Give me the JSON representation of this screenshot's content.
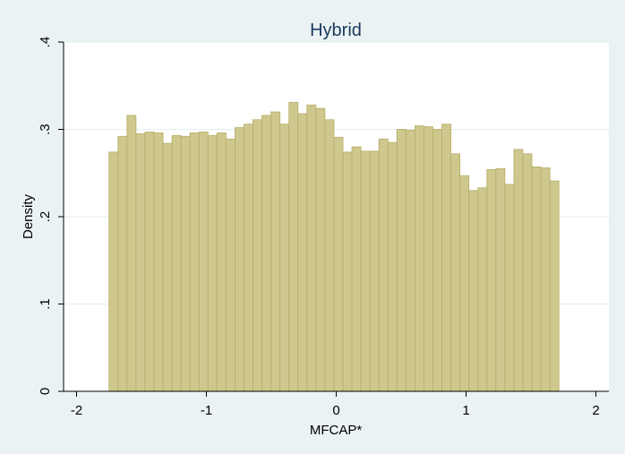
{
  "chart_data": {
    "type": "bar",
    "title": "Hybrid",
    "xlabel": "MFCAP*",
    "ylabel": "Density",
    "xlim": [
      -2.1,
      2.1
    ],
    "ylim": [
      0,
      0.4
    ],
    "x_ticks": [
      -2,
      -1,
      0,
      1,
      2
    ],
    "x_tick_labels": [
      "-2",
      "-1",
      "0",
      "1",
      "2"
    ],
    "y_ticks": [
      0,
      0.1,
      0.2,
      0.3,
      0.4
    ],
    "y_tick_labels": [
      "0",
      ".1",
      ".2",
      ".3",
      ".4"
    ],
    "grid": true,
    "bin_start": -1.75,
    "bin_width": 0.0693,
    "values": [
      0.274,
      0.292,
      0.316,
      0.295,
      0.297,
      0.296,
      0.284,
      0.293,
      0.292,
      0.296,
      0.297,
      0.293,
      0.296,
      0.289,
      0.302,
      0.306,
      0.311,
      0.316,
      0.32,
      0.306,
      0.331,
      0.318,
      0.328,
      0.324,
      0.311,
      0.291,
      0.274,
      0.28,
      0.275,
      0.275,
      0.289,
      0.285,
      0.3,
      0.299,
      0.304,
      0.303,
      0.3,
      0.306,
      0.272,
      0.247,
      0.23,
      0.233,
      0.254,
      0.255,
      0.237,
      0.277,
      0.272,
      0.257,
      0.256,
      0.241
    ],
    "colors": {
      "bar_fill": "#cfc88e",
      "bar_stroke": "#b5ac66",
      "plot_bg": "#ffffff",
      "page_bg": "#eaf2f3",
      "grid": "#e6ecee",
      "axis": "#000000",
      "title": "#1a3a5c"
    }
  }
}
